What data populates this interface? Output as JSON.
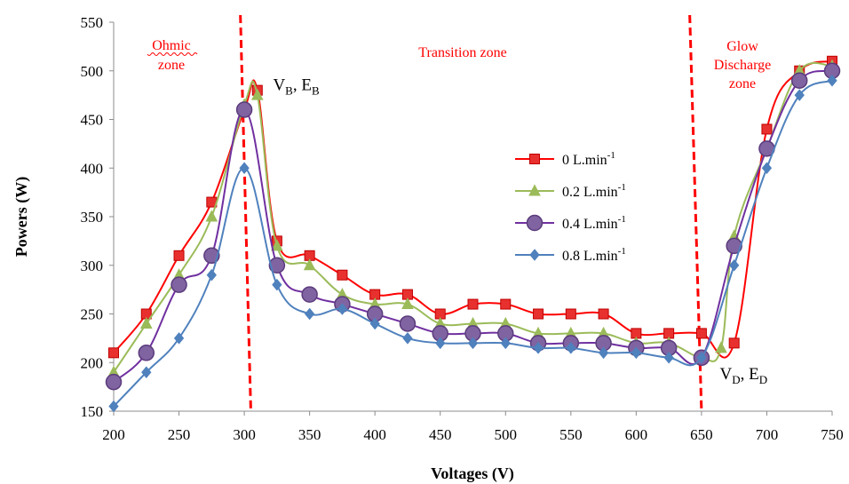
{
  "chart_data": {
    "type": "line",
    "xlabel": "Voltages (V)",
    "ylabel": "Powers (W)",
    "xlim": [
      200,
      750
    ],
    "ylim": [
      150,
      550
    ],
    "xticks": [
      200,
      250,
      300,
      350,
      400,
      450,
      500,
      550,
      600,
      650,
      700,
      750
    ],
    "yticks": [
      150,
      200,
      250,
      300,
      350,
      400,
      450,
      500,
      550
    ],
    "grid": false,
    "legend_position": "center-right",
    "zones": [
      {
        "lines": [
          "Ohmic",
          "zone"
        ]
      },
      {
        "lines": [
          "Transition zone"
        ]
      },
      {
        "lines": [
          "Glow",
          "Discharge",
          "zone"
        ]
      }
    ],
    "zone_boundaries": [
      {
        "from": [
          297,
          550
        ],
        "to": [
          305,
          150
        ]
      },
      {
        "from": [
          641,
          550
        ],
        "to": [
          650,
          150
        ]
      }
    ],
    "annotations": [
      {
        "base": "V",
        "sub": "B",
        "sep": ", ",
        "base2": "E",
        "sub2": "B",
        "at": [
          322,
          480
        ]
      },
      {
        "base": "V",
        "sub": "D",
        "sep": ", ",
        "base2": "E",
        "sub2": "D",
        "at": [
          664,
          183
        ]
      }
    ],
    "series": [
      {
        "name": "0 L.min-1",
        "label": "0 L.min",
        "sup": "-1",
        "color": "#ff0000",
        "marker": "square",
        "marker_fill": "#e8312f",
        "marker_stroke": "#c00000",
        "x": [
          200,
          225,
          250,
          275,
          300,
          310,
          325,
          350,
          375,
          400,
          425,
          450,
          475,
          500,
          525,
          550,
          575,
          600,
          625,
          650,
          675,
          700,
          725,
          750
        ],
        "y": [
          210,
          250,
          310,
          365,
          460,
          480,
          325,
          310,
          290,
          270,
          270,
          250,
          260,
          260,
          250,
          250,
          250,
          230,
          230,
          230,
          220,
          440,
          500,
          510
        ]
      },
      {
        "name": "0.2 L.min-1",
        "label": "0.2 L.min",
        "sup": "-1",
        "color": "#9bbb59",
        "marker": "triangle",
        "marker_fill": "#9bbb59",
        "marker_stroke": "#9bbb59",
        "x": [
          200,
          225,
          250,
          275,
          300,
          310,
          325,
          350,
          375,
          400,
          425,
          450,
          475,
          500,
          525,
          550,
          575,
          600,
          625,
          650,
          665,
          675,
          700,
          725,
          750
        ],
        "y": [
          190,
          240,
          290,
          350,
          465,
          475,
          320,
          300,
          270,
          260,
          260,
          240,
          240,
          240,
          230,
          230,
          230,
          220,
          220,
          205,
          215,
          330,
          420,
          500,
          505
        ]
      },
      {
        "name": "0.4 L.min-1",
        "label": "0.4 L.min",
        "sup": "-1",
        "color": "#7030a0",
        "marker": "circle",
        "marker_fill": "#8064a2",
        "marker_stroke": "#5b3b7c",
        "x": [
          200,
          225,
          250,
          275,
          300,
          325,
          350,
          375,
          400,
          425,
          450,
          475,
          500,
          525,
          550,
          575,
          600,
          625,
          650,
          675,
          700,
          725,
          750
        ],
        "y": [
          180,
          210,
          280,
          310,
          460,
          300,
          270,
          260,
          250,
          240,
          230,
          230,
          230,
          220,
          220,
          220,
          215,
          215,
          205,
          320,
          420,
          490,
          500
        ]
      },
      {
        "name": "0.8 L.min-1",
        "label": "0.8 L.min",
        "sup": "-1",
        "color": "#4f81bd",
        "marker": "diamond",
        "marker_fill": "#4f81bd",
        "marker_stroke": "#4f81bd",
        "x": [
          200,
          225,
          250,
          275,
          300,
          325,
          350,
          375,
          400,
          425,
          450,
          475,
          500,
          525,
          550,
          575,
          600,
          625,
          650,
          675,
          700,
          725,
          750
        ],
        "y": [
          155,
          190,
          225,
          290,
          400,
          280,
          250,
          255,
          240,
          225,
          220,
          220,
          220,
          215,
          215,
          210,
          210,
          205,
          205,
          300,
          400,
          475,
          490
        ]
      }
    ]
  }
}
